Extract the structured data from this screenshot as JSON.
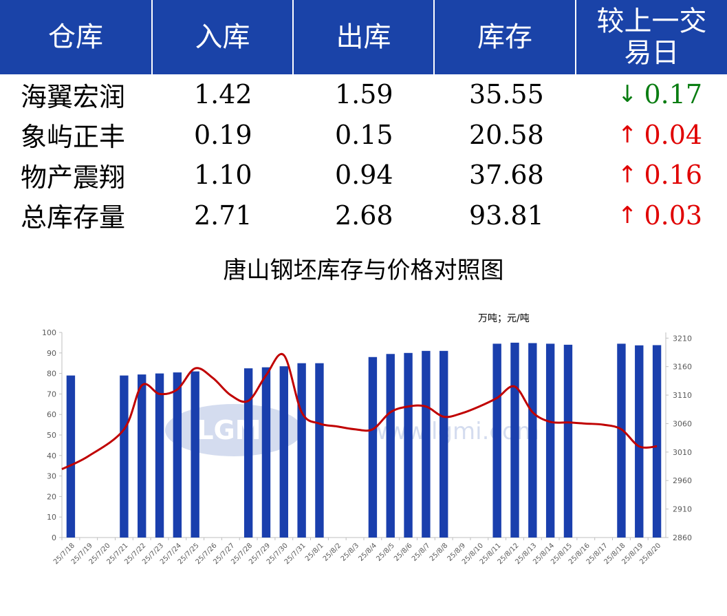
{
  "table": {
    "headers": [
      "仓库",
      "入库",
      "出库",
      "库存",
      "较上一交易日"
    ],
    "rows": [
      {
        "name": "海翼宏润",
        "in": "1.42",
        "out": "1.59",
        "stock": "35.55",
        "dir": "down",
        "arrow": "↓",
        "change": "0.17"
      },
      {
        "name": "象屿正丰",
        "in": "0.19",
        "out": "0.15",
        "stock": "20.58",
        "dir": "up",
        "arrow": "↑",
        "change": "0.04"
      },
      {
        "name": "物产震翔",
        "in": "1.10",
        "out": "0.94",
        "stock": "37.68",
        "dir": "up",
        "arrow": "↑",
        "change": "0.16"
      },
      {
        "name": "总库存量",
        "in": "2.71",
        "out": "2.68",
        "stock": "93.81",
        "dir": "up",
        "arrow": "↑",
        "change": "0.03"
      }
    ]
  },
  "colors": {
    "header_bg": "#1a43a8",
    "bar": "#1a3fad",
    "line": "#c00000",
    "down": "#0a7d12",
    "up": "#e00000"
  },
  "chart_data": {
    "type": "bar",
    "title": "唐山钢坯库存与价格对照图",
    "unit_label": "万吨；元/吨",
    "categories": [
      "25/7/18",
      "25/7/19",
      "25/7/20",
      "25/7/21",
      "25/7/22",
      "25/7/23",
      "25/7/24",
      "25/7/25",
      "25/7/26",
      "25/7/27",
      "25/7/28",
      "25/7/29",
      "25/7/30",
      "25/7/31",
      "25/8/1",
      "25/8/2",
      "25/8/3",
      "25/8/4",
      "25/8/5",
      "25/8/6",
      "25/8/7",
      "25/8/8",
      "25/8/9",
      "25/8/10",
      "25/8/11",
      "25/8/12",
      "25/8/13",
      "25/8/14",
      "25/8/15",
      "25/8/16",
      "25/8/17",
      "25/8/18",
      "25/8/19",
      "25/8/20"
    ],
    "y_left": {
      "min": 0,
      "max": 100,
      "ticks": [
        0,
        10,
        20,
        30,
        40,
        50,
        60,
        70,
        80,
        90,
        100
      ]
    },
    "y_right": {
      "min": 2860,
      "max": 3220,
      "ticks": [
        2860,
        2910,
        2960,
        3010,
        3060,
        3110,
        3160,
        3210
      ]
    },
    "series": [
      {
        "kind": "bar",
        "axis": "left",
        "values": [
          79,
          null,
          null,
          79,
          79.5,
          80,
          80.5,
          81,
          null,
          null,
          82.5,
          83,
          83.5,
          85,
          85,
          null,
          null,
          88,
          89.5,
          90,
          91,
          91,
          null,
          null,
          94.5,
          95,
          94.8,
          94.5,
          94,
          null,
          null,
          94.5,
          93.7,
          93.8
        ]
      },
      {
        "kind": "line",
        "axis": "right",
        "smooth": true,
        "points": [
          [
            0,
            2980
          ],
          [
            1,
            3003
          ],
          [
            3,
            3050
          ],
          [
            4,
            3127
          ],
          [
            5,
            3112
          ],
          [
            6,
            3120
          ],
          [
            7,
            3157
          ],
          [
            8,
            3140
          ],
          [
            9,
            3110
          ],
          [
            10,
            3100
          ],
          [
            11,
            3145
          ],
          [
            12,
            3180
          ],
          [
            13,
            3080
          ],
          [
            14,
            3060
          ],
          [
            15,
            3055
          ],
          [
            16,
            3050
          ],
          [
            17,
            3050
          ],
          [
            18,
            3080
          ],
          [
            19,
            3090
          ],
          [
            20,
            3090
          ],
          [
            21,
            3072
          ],
          [
            22,
            3078
          ],
          [
            23,
            3090
          ],
          [
            24,
            3105
          ],
          [
            25,
            3125
          ],
          [
            26,
            3080
          ],
          [
            27,
            3063
          ],
          [
            28,
            3062
          ],
          [
            29,
            3060
          ],
          [
            30,
            3058
          ],
          [
            31,
            3050
          ],
          [
            32,
            3020
          ],
          [
            33,
            3020
          ]
        ]
      }
    ],
    "watermark": "LGMI www.lgmi.com"
  }
}
